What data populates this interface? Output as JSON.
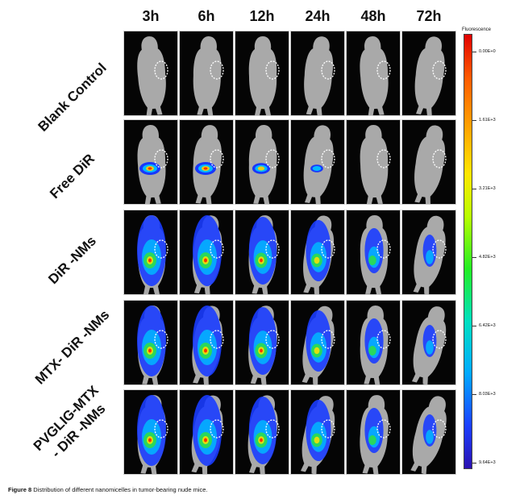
{
  "time_points": [
    "3h",
    "6h",
    "12h",
    "24h",
    "48h",
    "72h"
  ],
  "groups": [
    "Blank Control",
    "Free DiR",
    "DiR -NMs",
    "MTX- DiR -NMs",
    "PVGLIG-MTX\n- DiR -NMs"
  ],
  "colorbar": {
    "title": "Fluorescence",
    "tick_labels": [
      "0.00E+0",
      "1.61E+3",
      "3.21E+3",
      "4.82E+3",
      "6.42E+3",
      "8.03E+3",
      "9.64E+3"
    ]
  },
  "caption": {
    "label": "Figure 8",
    "text": "Distribution of different nanomicelles in tumor-bearing nude mice."
  },
  "colors": {
    "background": "#050505",
    "mouse": "#a9a9a9",
    "ellipse": "#ffffff"
  }
}
